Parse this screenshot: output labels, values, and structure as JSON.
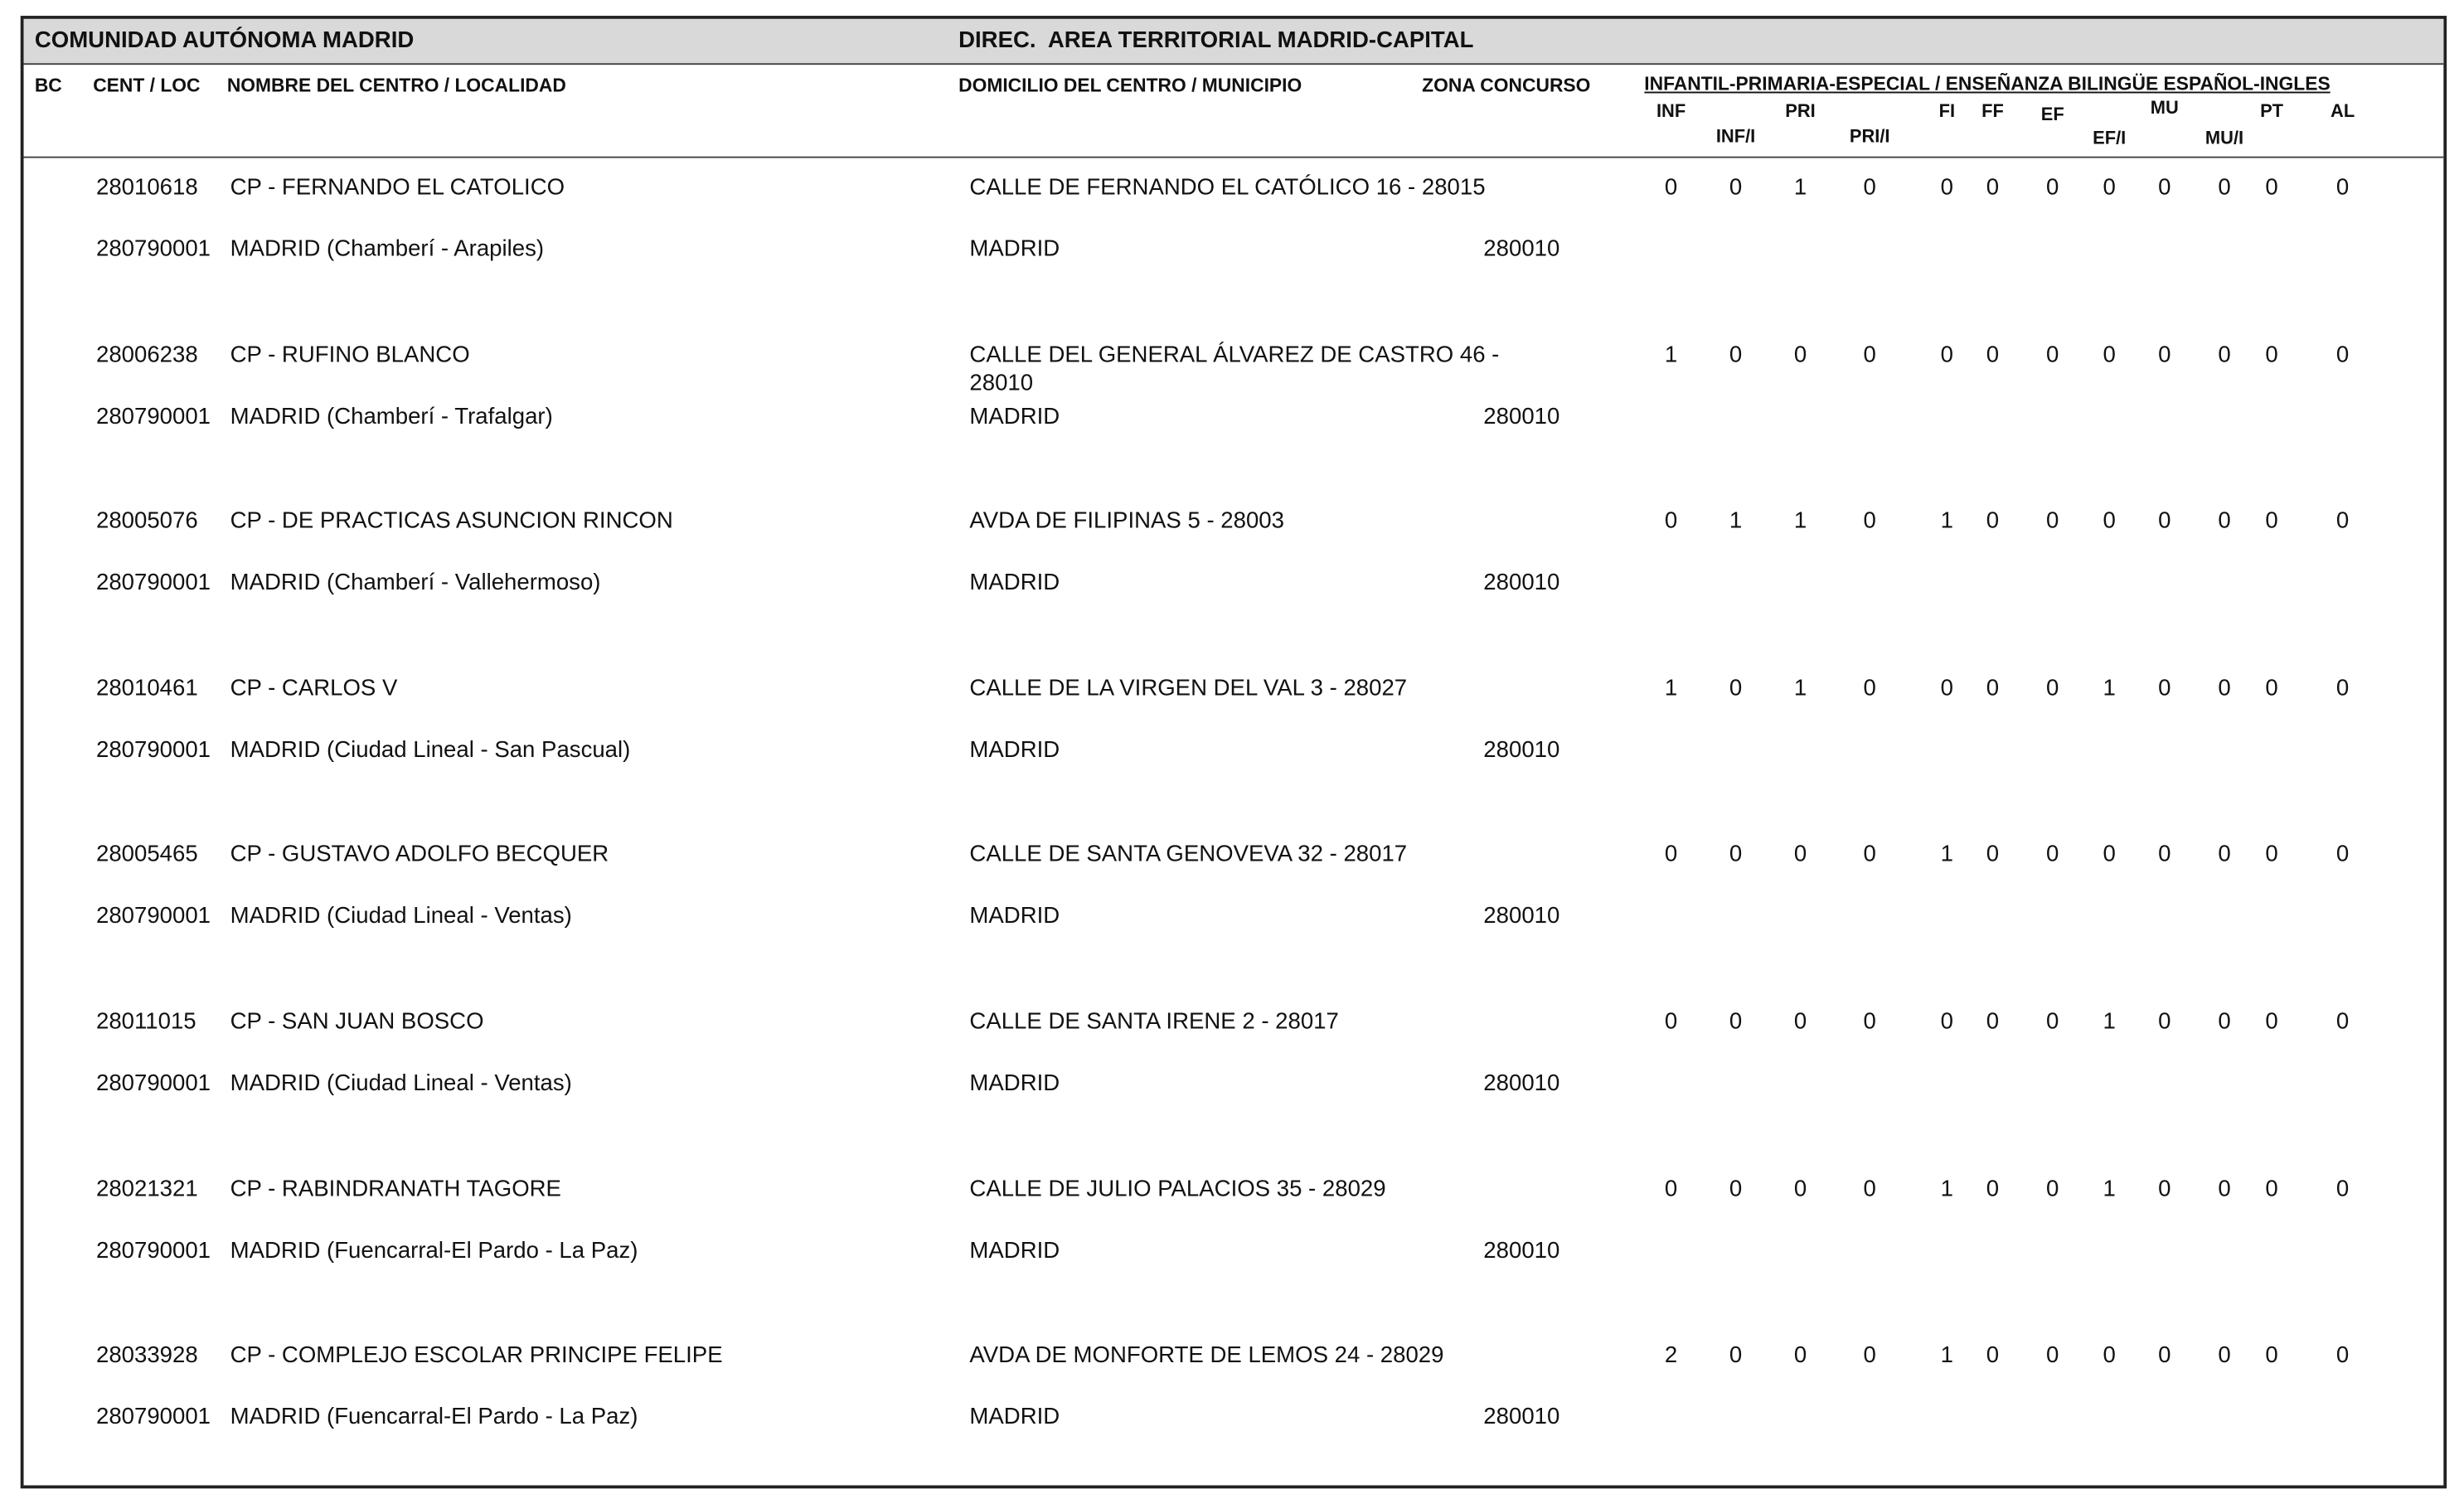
{
  "header": {
    "region": "COMUNIDAD AUTÓNOMA MADRID",
    "direction": "DIREC.  AREA TERRITORIAL MADRID-CAPITAL"
  },
  "columns": {
    "bc": "BC",
    "cent_loc": "CENT / LOC",
    "name": "NOMBRE DEL CENTRO / LOCALIDAD",
    "address": "DOMICILIO DEL CENTRO / MUNICIPIO",
    "zone": "ZONA CONCURSO",
    "group": "INFANTIL-PRIMARIA-ESPECIAL / ENSEÑANZA BILINGÜE ESPAÑOL-INGLES",
    "specialties": [
      "INF",
      "INF/I",
      "PRI",
      "PRI/I",
      "FI",
      "FF",
      "EF",
      "EF/I",
      "MU",
      "MU/I",
      "PT",
      "AL"
    ]
  },
  "rows": [
    {
      "code": "28010618",
      "name": "CP - FERNANDO EL CATOLICO",
      "address": "CALLE DE FERNANDO EL CATÓLICO 16 - 28015",
      "loc_code": "280790001",
      "locality": "MADRID (Chamberí - Arapiles)",
      "municipality": "MADRID",
      "zone": "280010",
      "values": [
        0,
        0,
        1,
        0,
        0,
        0,
        0,
        0,
        0,
        0,
        0,
        0
      ]
    },
    {
      "code": "28006238",
      "name": "CP - RUFINO BLANCO",
      "address": "CALLE DEL GENERAL ÁLVAREZ DE CASTRO 46 - 28010",
      "loc_code": "280790001",
      "locality": "MADRID (Chamberí - Trafalgar)",
      "municipality": "MADRID",
      "zone": "280010",
      "values": [
        1,
        0,
        0,
        0,
        0,
        0,
        0,
        0,
        0,
        0,
        0,
        0
      ]
    },
    {
      "code": "28005076",
      "name": "CP - DE PRACTICAS ASUNCION RINCON",
      "address": "AVDA DE FILIPINAS 5 - 28003",
      "loc_code": "280790001",
      "locality": "MADRID (Chamberí - Vallehermoso)",
      "municipality": "MADRID",
      "zone": "280010",
      "values": [
        0,
        1,
        1,
        0,
        1,
        0,
        0,
        0,
        0,
        0,
        0,
        0
      ]
    },
    {
      "code": "28010461",
      "name": "CP - CARLOS V",
      "address": "CALLE DE LA VIRGEN DEL VAL 3 - 28027",
      "loc_code": "280790001",
      "locality": "MADRID (Ciudad Lineal - San Pascual)",
      "municipality": "MADRID",
      "zone": "280010",
      "values": [
        1,
        0,
        1,
        0,
        0,
        0,
        0,
        1,
        0,
        0,
        0,
        0
      ]
    },
    {
      "code": "28005465",
      "name": "CP - GUSTAVO ADOLFO BECQUER",
      "address": "CALLE DE SANTA GENOVEVA 32 - 28017",
      "loc_code": "280790001",
      "locality": "MADRID (Ciudad Lineal - Ventas)",
      "municipality": "MADRID",
      "zone": "280010",
      "values": [
        0,
        0,
        0,
        0,
        1,
        0,
        0,
        0,
        0,
        0,
        0,
        0
      ]
    },
    {
      "code": "28011015",
      "name": "CP - SAN JUAN BOSCO",
      "address": "CALLE DE SANTA IRENE 2 - 28017",
      "loc_code": "280790001",
      "locality": "MADRID (Ciudad Lineal - Ventas)",
      "municipality": "MADRID",
      "zone": "280010",
      "values": [
        0,
        0,
        0,
        0,
        0,
        0,
        0,
        1,
        0,
        0,
        0,
        0
      ]
    },
    {
      "code": "28021321",
      "name": "CP - RABINDRANATH TAGORE",
      "address": "CALLE DE JULIO PALACIOS 35 - 28029",
      "loc_code": "280790001",
      "locality": "MADRID (Fuencarral-El Pardo - La Paz)",
      "municipality": "MADRID",
      "zone": "280010",
      "values": [
        0,
        0,
        0,
        0,
        1,
        0,
        0,
        1,
        0,
        0,
        0,
        0
      ]
    },
    {
      "code": "28033928",
      "name": "CP - COMPLEJO ESCOLAR PRINCIPE FELIPE",
      "address": "AVDA DE MONFORTE DE LEMOS 24 - 28029",
      "loc_code": "280790001",
      "locality": "MADRID (Fuencarral-El Pardo - La Paz)",
      "municipality": "MADRID",
      "zone": "280010",
      "values": [
        2,
        0,
        0,
        0,
        1,
        0,
        0,
        0,
        0,
        0,
        0,
        0
      ]
    }
  ]
}
